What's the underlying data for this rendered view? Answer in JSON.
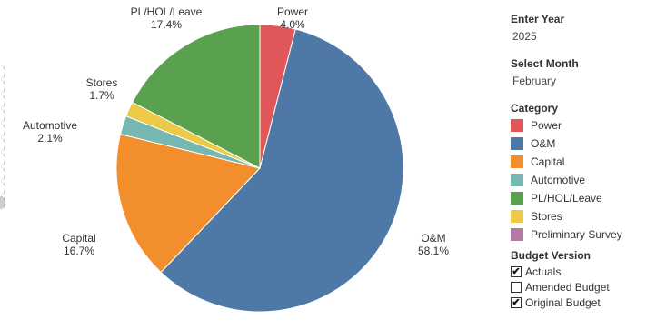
{
  "chart_data": {
    "type": "pie",
    "slices": [
      {
        "label": "Power",
        "pct_text": "4.0%",
        "value": 4.0,
        "color": "#e15759"
      },
      {
        "label": "O&M",
        "pct_text": "58.1%",
        "value": 58.1,
        "color": "#4e79a7"
      },
      {
        "label": "Capital",
        "pct_text": "16.7%",
        "value": 16.7,
        "color": "#f28e2b"
      },
      {
        "label": "Automotive",
        "pct_text": "2.1%",
        "value": 2.1,
        "color": "#76b7b2"
      },
      {
        "label": "Stores",
        "pct_text": "1.7%",
        "value": 1.7,
        "color": "#edc948"
      },
      {
        "label": "PL/HOL/Leave",
        "pct_text": "17.4%",
        "value": 17.4,
        "color": "#59a14f"
      }
    ]
  },
  "filters": {
    "year": {
      "title": "Enter Year",
      "value": "2025"
    },
    "month": {
      "title": "Select Month",
      "value": "February"
    }
  },
  "category_legend": {
    "title": "Category",
    "items": [
      {
        "label": "Power",
        "color": "#e15759"
      },
      {
        "label": "O&M",
        "color": "#4e79a7"
      },
      {
        "label": "Capital",
        "color": "#f28e2b"
      },
      {
        "label": "Automotive",
        "color": "#76b7b2"
      },
      {
        "label": "PL/HOL/Leave",
        "color": "#59a14f"
      },
      {
        "label": "Stores",
        "color": "#edc948"
      },
      {
        "label": "Preliminary Survey",
        "color": "#b07aa1"
      }
    ]
  },
  "budget_version": {
    "title": "Budget Version",
    "options": [
      {
        "label": "Actuals",
        "checked": true,
        "mark": "✔"
      },
      {
        "label": "Amended Budget",
        "checked": false,
        "mark": ""
      },
      {
        "label": "Original Budget",
        "checked": true,
        "mark": "✔"
      }
    ]
  }
}
